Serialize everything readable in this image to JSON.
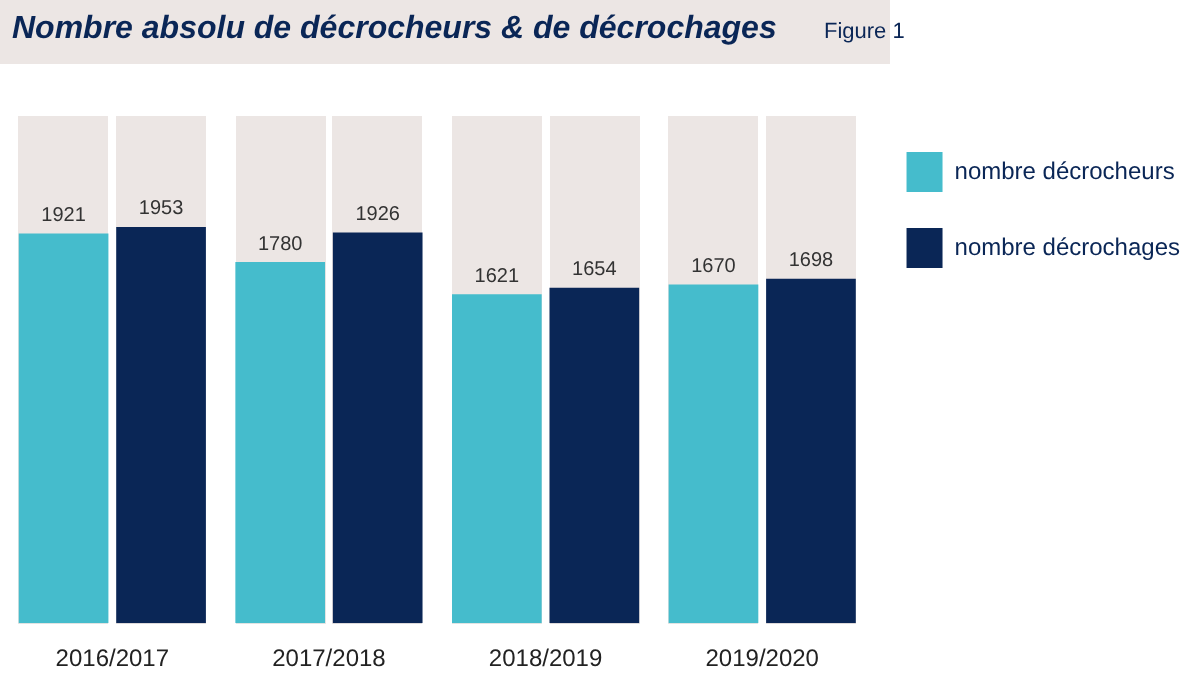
{
  "chart_data": {
    "type": "bar",
    "title": "Nombre absolu de décrocheurs & de décrochages",
    "annotations": [
      "Figure 1"
    ],
    "categories": [
      "2016/2017",
      "2017/2018",
      "2018/2019",
      "2019/2020"
    ],
    "series": [
      {
        "name": "nombre décrocheurs",
        "color": "#45bccc",
        "values": [
          1921,
          1780,
          1621,
          1670
        ]
      },
      {
        "name": "nombre décrochages",
        "color": "#0a2656",
        "values": [
          1953,
          1926,
          1654,
          1698
        ]
      }
    ],
    "data_labels": true,
    "grid": false,
    "legend": "right",
    "tick_labels": "x"
  }
}
